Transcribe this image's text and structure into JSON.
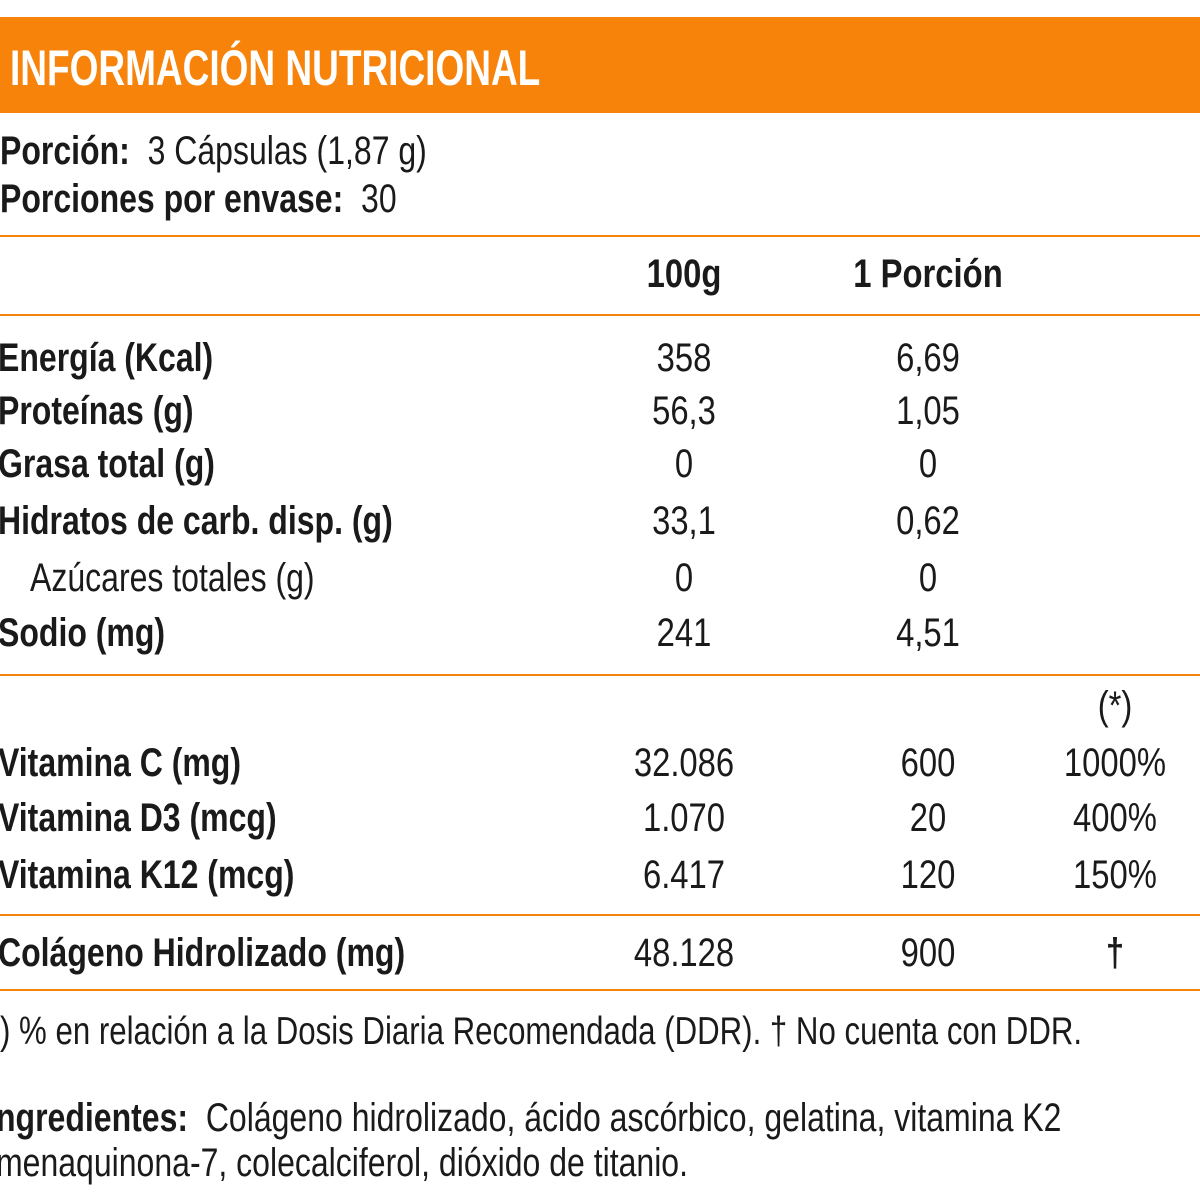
{
  "title": "INFORMACIÓN NUTRICIONAL",
  "serving": {
    "portion_label": "Porción:",
    "portion_value": "3 Cápsulas (1,87 g)",
    "per_pack_label": "Porciones por envase:",
    "per_pack_value": "30"
  },
  "columns": {
    "per100": "100g",
    "per_portion": "1 Porción",
    "ddr": "(*)"
  },
  "nutrients": [
    {
      "label": "Energía (Kcal)",
      "per100": "358",
      "portion": "6,69"
    },
    {
      "label": "Proteínas (g)",
      "per100": "56,3",
      "portion": "1,05"
    },
    {
      "label": "Grasa total (g)",
      "per100": "0",
      "portion": "0"
    },
    {
      "label": "Hidratos de carb. disp. (g)",
      "per100": "33,1",
      "portion": "0,62"
    },
    {
      "label": "Azúcares totales (g)",
      "per100": "0",
      "portion": "0"
    },
    {
      "label": "Sodio (mg)",
      "per100": "241",
      "portion": "4,51"
    }
  ],
  "vitamins": [
    {
      "label": "Vitamina C (mg)",
      "per100": "32.086",
      "portion": "600",
      "ddr": "1000%"
    },
    {
      "label": "Vitamina D3 (mcg)",
      "per100": "1.070",
      "portion": "20",
      "ddr": "400%"
    },
    {
      "label": "Vitamina K12 (mcg)",
      "per100": "6.417",
      "portion": "120",
      "ddr": "150%"
    }
  ],
  "collagen": {
    "label": "Colágeno Hidrolizado (mg)",
    "per100": "48.128",
    "portion": "900",
    "ddr": "†"
  },
  "footnote": ") % en relación a la Dosis Diaria Recomendada (DDR). † No cuenta con DDR.",
  "ingredients": {
    "label": "ngredientes:",
    "line1": "Colágeno hidrolizado, ácido ascórbico, gelatina, vitamina K2",
    "line2": "menaquinona-7, colecalciferol, dióxido de titanio."
  },
  "colors": {
    "accent": "#F7830A"
  }
}
